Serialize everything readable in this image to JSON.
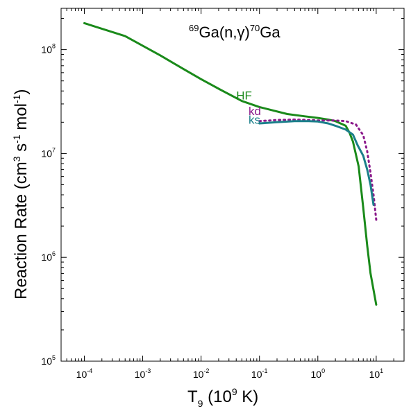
{
  "chart_data": {
    "type": "line",
    "title": {
      "mass_in": "69",
      "element_in": "Ga",
      "reaction": "(n,γ)",
      "mass_out": "70",
      "element_out": "Ga"
    },
    "xlabel": {
      "main": "T",
      "sub": "9",
      "paren_open": " (10",
      "exp": "9",
      "paren_close": " K)"
    },
    "ylabel": {
      "p1": "Reaction Rate (cm",
      "e1": "3",
      "p2": " s",
      "e2": "-1",
      "p3": " mol",
      "e3": "-1",
      "p4": ")"
    },
    "x_scale": "log",
    "y_scale": "log",
    "xlim": [
      4e-05,
      30
    ],
    "ylim": [
      100000,
      250000000
    ],
    "x_ticks": [
      {
        "value": 0.0001,
        "base": "10",
        "exp": "-4"
      },
      {
        "value": 0.001,
        "base": "10",
        "exp": "-3"
      },
      {
        "value": 0.01,
        "base": "10",
        "exp": "-2"
      },
      {
        "value": 0.1,
        "base": "10",
        "exp": "-1"
      },
      {
        "value": 1,
        "base": "10",
        "exp": "0"
      },
      {
        "value": 10,
        "base": "10",
        "exp": "1"
      }
    ],
    "y_ticks": [
      {
        "value": 100000,
        "base": "10",
        "exp": "5"
      },
      {
        "value": 1000000,
        "base": "10",
        "exp": "6"
      },
      {
        "value": 10000000,
        "base": "10",
        "exp": "7"
      },
      {
        "value": 100000000,
        "base": "10",
        "exp": "8"
      }
    ],
    "series": [
      {
        "name": "HF",
        "color": "#1a8a1a",
        "dash": "solid",
        "points": [
          [
            0.0001,
            180000000
          ],
          [
            0.0005,
            135000000
          ],
          [
            0.002,
            88000000
          ],
          [
            0.005,
            65000000
          ],
          [
            0.01,
            52000000
          ],
          [
            0.02,
            42000000
          ],
          [
            0.05,
            32000000
          ],
          [
            0.1,
            28000000
          ],
          [
            0.3,
            24000000
          ],
          [
            0.6,
            22800000
          ],
          [
            1.0,
            22000000
          ],
          [
            1.5,
            21200000
          ],
          [
            2.0,
            20500000
          ],
          [
            3.0,
            18500000
          ],
          [
            3.5,
            15800000
          ],
          [
            4.0,
            13000000
          ],
          [
            5.0,
            7500000
          ],
          [
            6.0,
            3000000
          ],
          [
            7.0,
            1300000
          ],
          [
            8.0,
            700000
          ],
          [
            10.0,
            350000
          ]
        ]
      },
      {
        "name": "kd",
        "color": "#8b1a8b",
        "dash": "dotted",
        "points": [
          [
            0.1,
            20500000
          ],
          [
            0.2,
            21000000
          ],
          [
            0.4,
            21200000
          ],
          [
            0.7,
            21000000
          ],
          [
            1.0,
            20800000
          ],
          [
            2.0,
            20800000
          ],
          [
            3.0,
            20500000
          ],
          [
            4.5,
            19000000
          ],
          [
            6.0,
            15000000
          ],
          [
            7.0,
            10500000
          ],
          [
            8.0,
            6500000
          ],
          [
            9.0,
            4000000
          ],
          [
            10.0,
            2300000
          ]
        ]
      },
      {
        "name": "ks",
        "color": "#1a7f8a",
        "dash": "solid",
        "points": [
          [
            0.1,
            19500000
          ],
          [
            0.2,
            20000000
          ],
          [
            0.4,
            20500000
          ],
          [
            0.7,
            20500000
          ],
          [
            1.0,
            20300000
          ],
          [
            1.5,
            19500000
          ],
          [
            2.0,
            18500000
          ],
          [
            3.0,
            17000000
          ],
          [
            4.0,
            15200000
          ],
          [
            4.8,
            12000000
          ],
          [
            6.0,
            9500000
          ],
          [
            7.0,
            7000000
          ],
          [
            8.0,
            5000000
          ],
          [
            9.0,
            3200000
          ]
        ]
      }
    ],
    "annotations": [
      {
        "text": "HF",
        "color": "#1a8a1a",
        "x": 0.04,
        "y": 33000000
      },
      {
        "text": "kd",
        "color": "#8b1a8b",
        "x": 0.065,
        "y": 23500000
      },
      {
        "text": "ks",
        "color": "#1a7f8a",
        "x": 0.065,
        "y": 19300000
      }
    ]
  }
}
